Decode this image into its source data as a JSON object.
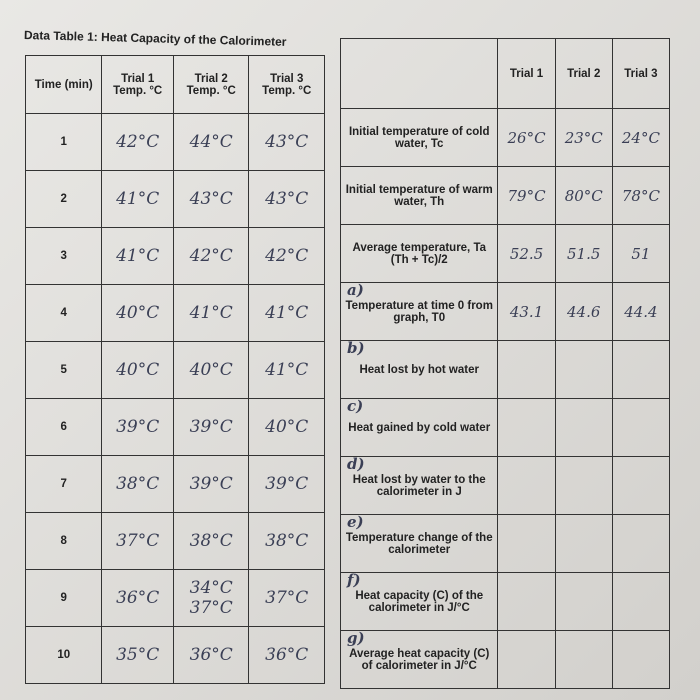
{
  "left_table": {
    "title": "Data Table 1: Heat Capacity of the Calorimeter",
    "headers": [
      "Time (min)",
      "Trial 1 Temp. °C",
      "Trial 2 Temp. °C",
      "Trial 3 Temp. °C"
    ],
    "rows": [
      [
        "1",
        "42°C",
        "44°C",
        "43°C"
      ],
      [
        "2",
        "41°C",
        "43°C",
        "43°C"
      ],
      [
        "3",
        "41°C",
        "42°C",
        "42°C"
      ],
      [
        "4",
        "40°C",
        "41°C",
        "41°C"
      ],
      [
        "5",
        "40°C",
        "40°C",
        "41°C"
      ],
      [
        "6",
        "39°C",
        "39°C",
        "40°C"
      ],
      [
        "7",
        "38°C",
        "39°C",
        "39°C"
      ],
      [
        "8",
        "37°C",
        "38°C",
        "38°C"
      ],
      [
        "9",
        "36°C",
        "34°C 37°C",
        "37°C"
      ],
      [
        "10",
        "35°C",
        "36°C",
        "36°C"
      ]
    ]
  },
  "right_table": {
    "headers": [
      "Trial 1",
      "Trial 2",
      "Trial 3"
    ],
    "rows": [
      {
        "label": "Initial temperature of cold water, Tc",
        "values": [
          "26°C",
          "23°C",
          "24°C"
        ]
      },
      {
        "label": "Initial temperature of warm water, Th",
        "values": [
          "79°C",
          "80°C",
          "78°C"
        ]
      },
      {
        "label": "Average temperature, Ta (Th + Tc)/2",
        "values": [
          "52.5",
          "51.5",
          "51"
        ]
      },
      {
        "marker": "a)",
        "label": "Temperature at time 0 from graph, T0",
        "values": [
          "43.1",
          "44.6",
          "44.4"
        ]
      },
      {
        "marker": "b)",
        "label": "Heat lost by hot water"
      },
      {
        "marker": "c)",
        "label": "Heat gained by cold water"
      },
      {
        "marker": "d)",
        "label": "Heat lost by water to the calorimeter in J"
      },
      {
        "marker": "e)",
        "label": "Temperature change of the calorimeter"
      },
      {
        "marker": "f)",
        "label": "Heat capacity (C) of the calorimeter in J/°C"
      },
      {
        "marker": "g)",
        "label": "Average heat capacity (C) of calorimeter in J/°C"
      }
    ]
  }
}
